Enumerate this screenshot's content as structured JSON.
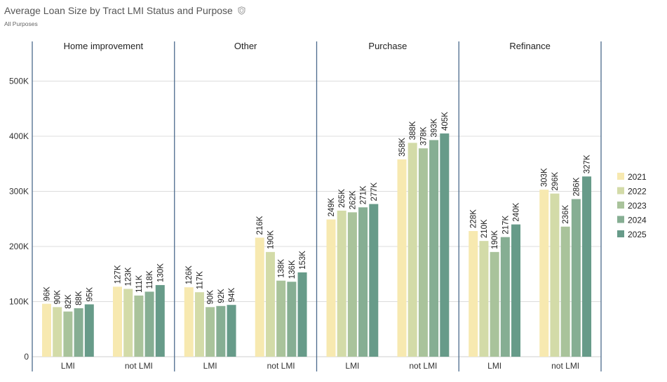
{
  "header": {
    "title": "Average Loan Size by Tract LMI Status and Purpose",
    "subtitle": "All Purposes",
    "title_icon": "shield-icon"
  },
  "chart_data": {
    "type": "bar",
    "title": "Average Loan Size by Tract LMI Status and Purpose",
    "subtitle": "All Purposes",
    "facets": [
      "Home improvement",
      "Other",
      "Purchase",
      "Refinance"
    ],
    "categories": [
      "LMI",
      "not LMI"
    ],
    "y_ticks": [
      {
        "value": 0,
        "label": "0"
      },
      {
        "value": 100000,
        "label": "100K"
      },
      {
        "value": 200000,
        "label": "200K"
      },
      {
        "value": 300000,
        "label": "300K"
      },
      {
        "value": 400000,
        "label": "400K"
      },
      {
        "value": 500000,
        "label": "500K"
      }
    ],
    "ylim": [
      0,
      500000
    ],
    "grid": true,
    "legend_position": "right",
    "series": [
      {
        "name": "2021",
        "color": "#f7e9b0"
      },
      {
        "name": "2022",
        "color": "#d3dba8"
      },
      {
        "name": "2023",
        "color": "#a9c39b"
      },
      {
        "name": "2024",
        "color": "#86ae93"
      },
      {
        "name": "2025",
        "color": "#679b89"
      }
    ],
    "panels": [
      {
        "facet": "Home improvement",
        "groups": [
          {
            "category": "LMI",
            "values": [
              96000,
              90000,
              82000,
              88000,
              95000
            ],
            "labels": [
              "96K",
              "90K",
              "82K",
              "88K",
              "95K"
            ]
          },
          {
            "category": "not LMI",
            "values": [
              127000,
              123000,
              111000,
              118000,
              130000
            ],
            "labels": [
              "127K",
              "123K",
              "111K",
              "118K",
              "130K"
            ]
          }
        ]
      },
      {
        "facet": "Other",
        "groups": [
          {
            "category": "LMI",
            "values": [
              126000,
              117000,
              90000,
              92000,
              94000
            ],
            "labels": [
              "126K",
              "117K",
              "90K",
              "92K",
              "94K"
            ]
          },
          {
            "category": "not LMI",
            "values": [
              216000,
              190000,
              138000,
              136000,
              153000
            ],
            "labels": [
              "216K",
              "190K",
              "138K",
              "136K",
              "153K"
            ]
          }
        ]
      },
      {
        "facet": "Purchase",
        "groups": [
          {
            "category": "LMI",
            "values": [
              249000,
              265000,
              262000,
              271000,
              277000
            ],
            "labels": [
              "249K",
              "265K",
              "262K",
              "271K",
              "277K"
            ]
          },
          {
            "category": "not LMI",
            "values": [
              358000,
              388000,
              378000,
              393000,
              405000
            ],
            "labels": [
              "358K",
              "388K",
              "378K",
              "393K",
              "405K"
            ]
          }
        ]
      },
      {
        "facet": "Refinance",
        "groups": [
          {
            "category": "LMI",
            "values": [
              228000,
              210000,
              190000,
              217000,
              240000
            ],
            "labels": [
              "228K",
              "210K",
              "190K",
              "217K",
              "240K"
            ]
          },
          {
            "category": "not LMI",
            "values": [
              303000,
              296000,
              236000,
              286000,
              327000
            ],
            "labels": [
              "303K",
              "296K",
              "236K",
              "286K",
              "327K"
            ]
          }
        ]
      }
    ]
  }
}
